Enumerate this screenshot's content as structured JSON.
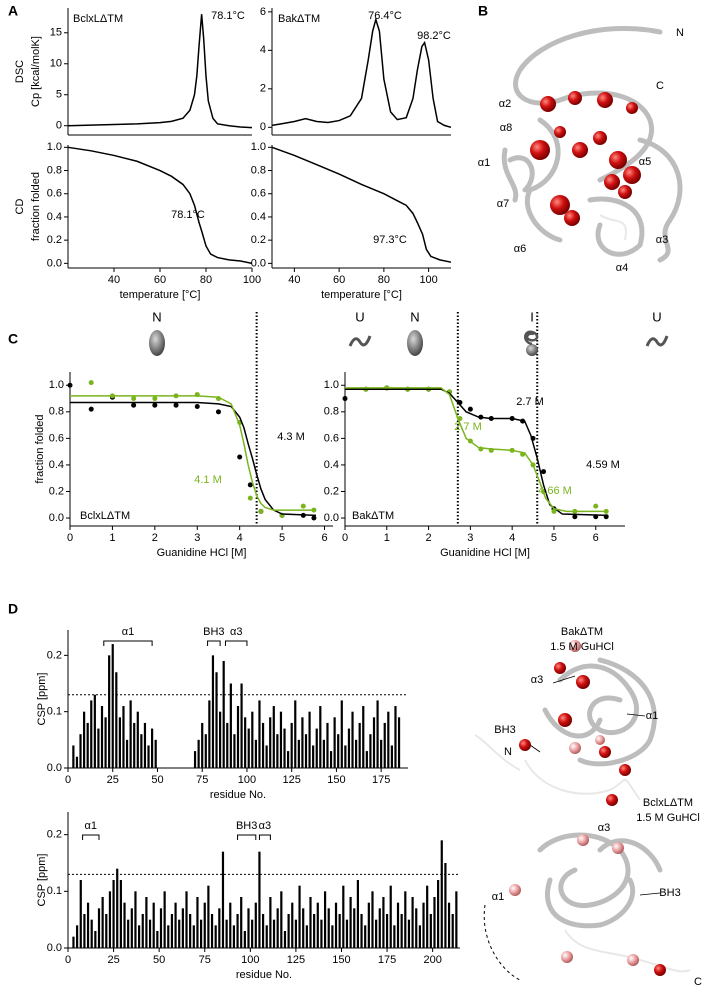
{
  "panel_labels": [
    "A",
    "B",
    "C",
    "D"
  ],
  "structures": {
    "B": {
      "labels": [
        "N",
        "C",
        "α2",
        "α8",
        "α1",
        "α5",
        "α7",
        "α6",
        "α3",
        "α4"
      ]
    },
    "D_bak": {
      "title": "BakΔTM",
      "subtitle": "1.5 M GuHCl",
      "labels": [
        "α3",
        "BH3",
        "N",
        "α1"
      ]
    },
    "D_bclxl": {
      "title": "BclxLΔTM",
      "subtitle": "1.5 M GuHCl",
      "labels": [
        "α3",
        "BH3",
        "α1",
        "C"
      ]
    }
  },
  "chart_data": [
    {
      "type": "line",
      "title": "BclxLΔTM",
      "ylabel": [
        "DSC",
        "Cp [kcal/molK]"
      ],
      "xlim": [
        20,
        100
      ],
      "ylim": [
        -1.5,
        19
      ],
      "yticks": [
        0,
        5,
        10,
        15
      ],
      "series": [
        {
          "color": "#000000",
          "x": [
            20,
            30,
            40,
            50,
            60,
            65,
            70,
            73,
            75,
            76,
            77,
            78.1,
            79,
            80,
            81,
            83,
            85,
            90,
            95,
            100
          ],
          "values": [
            0,
            0.1,
            0.2,
            0.3,
            0.5,
            0.7,
            1.2,
            2.5,
            5,
            8,
            13,
            18,
            14,
            8,
            4,
            1.2,
            0.3,
            0,
            -0.2,
            -0.3
          ]
        }
      ],
      "annotations": [
        {
          "text": "78.1°C"
        }
      ]
    },
    {
      "type": "line",
      "title": "BakΔTM",
      "xlim": [
        30,
        110
      ],
      "ylim": [
        -0.4,
        6.2
      ],
      "yticks": [
        0,
        2,
        4,
        6
      ],
      "series": [
        {
          "color": "#000000",
          "x": [
            30,
            35,
            40,
            45,
            50,
            55,
            60,
            65,
            70,
            73,
            75,
            76.4,
            78,
            80,
            83,
            86,
            90,
            93,
            95,
            97,
            98.2,
            100,
            102,
            104,
            107,
            110
          ],
          "values": [
            0.1,
            0.2,
            0.3,
            0.45,
            0.3,
            0.25,
            0.35,
            0.6,
            1.5,
            3.5,
            5,
            5.6,
            5,
            2.5,
            0.8,
            0.4,
            0.5,
            1.5,
            3,
            4.2,
            4.4,
            3.5,
            1.5,
            0.3,
            0.1,
            0
          ]
        }
      ],
      "annotations": [
        {
          "text": "76.4°C"
        },
        {
          "text": "98.2°C"
        }
      ]
    },
    {
      "type": "line",
      "ylabel": [
        "CD",
        "fraction folded"
      ],
      "xlabel": "temperature [°C]",
      "xlim": [
        20,
        100
      ],
      "ylim": [
        -0.04,
        1.02
      ],
      "xticks": [
        40,
        60,
        80,
        100
      ],
      "yticks": [
        {
          "value": 0,
          "label": "0.0"
        },
        0.2,
        0.4,
        0.6,
        0.8,
        {
          "value": 1,
          "label": "1.0"
        }
      ],
      "series": [
        {
          "color": "#000000",
          "x": [
            20,
            30,
            40,
            50,
            60,
            65,
            70,
            73,
            75,
            77,
            78.1,
            80,
            82,
            85,
            90,
            95,
            100
          ],
          "values": [
            1,
            0.97,
            0.93,
            0.88,
            0.8,
            0.75,
            0.68,
            0.6,
            0.5,
            0.35,
            0.28,
            0.15,
            0.08,
            0.05,
            0.03,
            0.02,
            0
          ]
        }
      ],
      "annotations": [
        {
          "text": "78.1°C"
        }
      ]
    },
    {
      "type": "line",
      "xlabel": "temperature [°C]",
      "xlim": [
        30,
        110
      ],
      "ylim": [
        -0.04,
        1.02
      ],
      "xticks": [
        40,
        60,
        80,
        100
      ],
      "yticks": [
        {
          "value": 0,
          "label": "0.0"
        },
        0.2,
        0.4,
        0.6,
        0.8,
        {
          "value": 1,
          "label": "1.0"
        }
      ],
      "series": [
        {
          "color": "#000000",
          "x": [
            30,
            40,
            50,
            60,
            70,
            80,
            85,
            90,
            93,
            95,
            97.3,
            99,
            101,
            105,
            110
          ],
          "values": [
            1,
            0.93,
            0.85,
            0.77,
            0.68,
            0.6,
            0.55,
            0.5,
            0.43,
            0.35,
            0.25,
            0.12,
            0.06,
            0.03,
            0.01
          ]
        }
      ],
      "annotations": [
        {
          "text": "97.3°C"
        }
      ]
    },
    {
      "type": "scatter",
      "title": "BclxLΔTM",
      "ylabel": [
        "fraction folded"
      ],
      "xlabel": "Guanidine HCl [M]",
      "xlim": [
        0,
        6.2
      ],
      "ylim": [
        -0.06,
        1.1
      ],
      "xticks": [
        0,
        1,
        2,
        3,
        4,
        5,
        6
      ],
      "yticks": [
        {
          "value": 0,
          "label": "0.0"
        },
        0.2,
        0.4,
        0.6,
        0.8,
        {
          "value": 1,
          "label": "1.0"
        }
      ],
      "states": [
        "N",
        "U"
      ],
      "vlines": [
        4.4
      ],
      "series": [
        {
          "color": "#000000",
          "mode": "markers",
          "x": [
            0,
            0.5,
            1,
            1.5,
            2,
            2.5,
            3,
            3.5,
            4,
            4.25,
            4.5,
            5,
            5.5,
            5.75
          ],
          "values": [
            1,
            0.82,
            0.91,
            0.85,
            0.85,
            0.85,
            0.84,
            0.8,
            0.46,
            0.25,
            0.05,
            0.02,
            0.02,
            0
          ]
        },
        {
          "color": "#7ab51d",
          "mode": "markers",
          "x": [
            0.5,
            1,
            1.5,
            2,
            2.5,
            3,
            3.5,
            4,
            4.25,
            4.5,
            5,
            5.5,
            5.75
          ],
          "values": [
            1.02,
            0.92,
            0.9,
            0.9,
            0.92,
            0.93,
            0.9,
            0.72,
            0.15,
            0.05,
            0.02,
            0.09,
            0.06
          ]
        },
        {
          "color": "#000000",
          "mode": "line",
          "x": [
            0,
            3,
            3.5,
            3.8,
            4,
            4.1,
            4.2,
            4.3,
            4.4,
            4.5,
            4.6,
            4.8,
            5,
            5.8
          ],
          "values": [
            0.87,
            0.87,
            0.86,
            0.84,
            0.76,
            0.68,
            0.56,
            0.45,
            0.33,
            0.22,
            0.14,
            0.06,
            0.03,
            0.02
          ]
        },
        {
          "color": "#7ab51d",
          "mode": "line",
          "x": [
            0,
            3,
            3.5,
            3.8,
            4,
            4.1,
            4.2,
            4.3,
            4.4,
            4.5,
            4.6,
            4.8,
            5,
            5.8
          ],
          "values": [
            0.92,
            0.92,
            0.91,
            0.86,
            0.7,
            0.56,
            0.4,
            0.27,
            0.17,
            0.11,
            0.08,
            0.06,
            0.06,
            0.06
          ]
        }
      ],
      "annotations": [
        {
          "text": "4.3 M",
          "color": "#000000"
        },
        {
          "text": "4.1 M",
          "color": "#7ab51d"
        }
      ]
    },
    {
      "type": "scatter",
      "title": "BakΔTM",
      "xlabel": "Guanidine HCl [M]",
      "xlim": [
        0,
        6.7
      ],
      "ylim": [
        -0.06,
        1.1
      ],
      "xticks": [
        0,
        1,
        2,
        3,
        4,
        5,
        6
      ],
      "yticks": [
        {
          "value": 0,
          "label": "0.0"
        },
        0.2,
        0.4,
        0.6,
        0.8,
        {
          "value": 1,
          "label": "1.0"
        }
      ],
      "states": [
        "N",
        "I",
        "U"
      ],
      "vlines": [
        2.7,
        4.6
      ],
      "series": [
        {
          "color": "#000000",
          "mode": "markers",
          "x": [
            0,
            0.5,
            1,
            1.5,
            2,
            2.5,
            2.75,
            3,
            3.25,
            3.5,
            4,
            4.25,
            4.5,
            4.75,
            5,
            5.5,
            6,
            6.25
          ],
          "values": [
            0.9,
            0.97,
            0.98,
            0.97,
            0.97,
            0.95,
            0.87,
            0.82,
            0.76,
            0.75,
            0.75,
            0.73,
            0.6,
            0.35,
            0.07,
            0.01,
            0.01,
            0.01
          ]
        },
        {
          "color": "#7ab51d",
          "mode": "markers",
          "x": [
            0.5,
            1,
            1.5,
            2,
            2.5,
            2.75,
            3,
            3.25,
            3.5,
            4,
            4.25,
            4.5,
            4.75,
            5,
            5.5,
            6,
            6.25
          ],
          "values": [
            0.97,
            0.98,
            0.97,
            0.97,
            0.95,
            0.75,
            0.58,
            0.52,
            0.51,
            0.51,
            0.48,
            0.4,
            0.2,
            0.05,
            0.05,
            0.09,
            0.05
          ]
        },
        {
          "color": "#000000",
          "mode": "line",
          "x": [
            0,
            2.3,
            2.5,
            2.7,
            2.9,
            3.2,
            3.5,
            4,
            4.3,
            4.45,
            4.6,
            4.75,
            4.9,
            5.2,
            6.3
          ],
          "values": [
            0.97,
            0.97,
            0.94,
            0.87,
            0.8,
            0.76,
            0.75,
            0.75,
            0.73,
            0.62,
            0.45,
            0.25,
            0.1,
            0.03,
            0.02
          ]
        },
        {
          "color": "#7ab51d",
          "mode": "line",
          "x": [
            0,
            2.3,
            2.5,
            2.7,
            2.9,
            3.2,
            3.5,
            4,
            4.3,
            4.5,
            4.66,
            4.8,
            5,
            5.3,
            6.3
          ],
          "values": [
            0.98,
            0.98,
            0.93,
            0.75,
            0.6,
            0.53,
            0.52,
            0.51,
            0.49,
            0.4,
            0.27,
            0.15,
            0.07,
            0.05,
            0.05
          ]
        }
      ],
      "annotations": [
        {
          "text": "2.7 M",
          "color": "#000000"
        },
        {
          "text": "2.7 M",
          "color": "#7ab51d"
        },
        {
          "text": "4.66 M",
          "color": "#7ab51d"
        },
        {
          "text": "4.59 M",
          "color": "#000000"
        }
      ]
    },
    {
      "type": "bar",
      "ylabel": [
        "CSP [ppm]"
      ],
      "xlabel": "residue No.",
      "xlim": [
        0,
        190
      ],
      "ylim": [
        0,
        0.245
      ],
      "xticks": [
        0,
        25,
        50,
        75,
        100,
        125,
        150,
        175
      ],
      "yticks": [
        {
          "value": 0,
          "label": "0.0"
        },
        0.1,
        0.2
      ],
      "threshold": 0.13,
      "color": "#000000",
      "brackets": [
        {
          "text": "α1",
          "x": [
            20,
            47
          ]
        },
        {
          "text": "BH3",
          "x": [
            78,
            85
          ]
        },
        {
          "text": "α3",
          "x": [
            88,
            100
          ]
        }
      ],
      "x": [
        3,
        5,
        7,
        9,
        11,
        13,
        15,
        17,
        19,
        21,
        23,
        25,
        27,
        29,
        31,
        33,
        35,
        37,
        39,
        41,
        43,
        45,
        47,
        49,
        71,
        73,
        75,
        77,
        79,
        81,
        83,
        85,
        87,
        89,
        91,
        93,
        95,
        97,
        99,
        101,
        103,
        105,
        107,
        109,
        111,
        113,
        115,
        117,
        119,
        121,
        123,
        125,
        127,
        129,
        131,
        133,
        135,
        137,
        139,
        141,
        143,
        145,
        147,
        149,
        151,
        153,
        155,
        157,
        159,
        161,
        163,
        165,
        167,
        169,
        171,
        173,
        175,
        177,
        179,
        181,
        183,
        185
      ],
      "values": [
        0.04,
        0.02,
        0.06,
        0.1,
        0.08,
        0.12,
        0.13,
        0.07,
        0.11,
        0.09,
        0.2,
        0.22,
        0.17,
        0.09,
        0.11,
        0.05,
        0.12,
        0.08,
        0.1,
        0.06,
        0.08,
        0.04,
        0.07,
        0.05,
        0.03,
        0.05,
        0.08,
        0.06,
        0.12,
        0.2,
        0.17,
        0.1,
        0.19,
        0.08,
        0.15,
        0.06,
        0.11,
        0.15,
        0.09,
        0.07,
        0.1,
        0.05,
        0.12,
        0.08,
        0.04,
        0.09,
        0.11,
        0.06,
        0.1,
        0.07,
        0.03,
        0.08,
        0.12,
        0.05,
        0.09,
        0.06,
        0.1,
        0.04,
        0.07,
        0.11,
        0.05,
        0.08,
        0.03,
        0.09,
        0.06,
        0.12,
        0.04,
        0.07,
        0.1,
        0.05,
        0.08,
        0.11,
        0.03,
        0.06,
        0.09,
        0.12,
        0.05,
        0.08,
        0.1,
        0.04,
        0.11,
        0.09
      ]
    },
    {
      "type": "bar",
      "ylabel": [
        "CSP [ppm]"
      ],
      "xlabel": "residue No.",
      "xlim": [
        0,
        215
      ],
      "ylim": [
        0,
        0.24
      ],
      "xticks": [
        0,
        25,
        50,
        75,
        100,
        125,
        150,
        175,
        200
      ],
      "yticks": [
        {
          "value": 0,
          "label": "0.0"
        },
        0.1,
        0.2
      ],
      "threshold": 0.13,
      "color": "#000000",
      "brackets": [
        {
          "text": "α1",
          "x": [
            8,
            17
          ]
        },
        {
          "text": "BH3",
          "x": [
            93,
            103
          ]
        },
        {
          "text": "α3",
          "x": [
            105,
            111
          ]
        }
      ],
      "x": [
        3,
        5,
        7,
        9,
        11,
        13,
        15,
        17,
        19,
        21,
        23,
        25,
        27,
        29,
        31,
        33,
        35,
        37,
        39,
        41,
        43,
        45,
        47,
        49,
        51,
        53,
        55,
        57,
        59,
        61,
        63,
        65,
        67,
        69,
        71,
        73,
        75,
        77,
        79,
        81,
        83,
        85,
        87,
        89,
        91,
        93,
        95,
        97,
        99,
        101,
        103,
        105,
        107,
        109,
        111,
        113,
        115,
        117,
        119,
        121,
        123,
        125,
        127,
        129,
        131,
        133,
        135,
        137,
        139,
        141,
        143,
        145,
        147,
        149,
        151,
        153,
        155,
        157,
        159,
        161,
        163,
        165,
        167,
        169,
        171,
        173,
        175,
        177,
        179,
        181,
        183,
        185,
        187,
        189,
        191,
        193,
        195,
        197,
        199,
        201,
        203,
        205,
        207,
        209,
        211,
        213
      ],
      "values": [
        0.02,
        0.04,
        0.12,
        0.06,
        0.08,
        0.05,
        0.03,
        0.07,
        0.09,
        0.06,
        0.1,
        0.12,
        0.14,
        0.12,
        0.08,
        0.05,
        0.07,
        0.1,
        0.04,
        0.06,
        0.09,
        0.05,
        0.08,
        0.03,
        0.07,
        0.1,
        0.04,
        0.06,
        0.08,
        0.05,
        0.07,
        0.1,
        0.06,
        0.04,
        0.09,
        0.05,
        0.08,
        0.11,
        0.06,
        0.04,
        0.07,
        0.17,
        0.05,
        0.08,
        0.04,
        0.06,
        0.09,
        0.03,
        0.07,
        0.05,
        0.08,
        0.17,
        0.06,
        0.04,
        0.09,
        0.05,
        0.07,
        0.1,
        0.03,
        0.06,
        0.08,
        0.05,
        0.11,
        0.07,
        0.04,
        0.09,
        0.06,
        0.08,
        0.05,
        0.1,
        0.07,
        0.04,
        0.08,
        0.06,
        0.11,
        0.05,
        0.09,
        0.07,
        0.12,
        0.06,
        0.04,
        0.08,
        0.1,
        0.05,
        0.07,
        0.09,
        0.06,
        0.11,
        0.04,
        0.08,
        0.06,
        0.1,
        0.05,
        0.09,
        0.07,
        0.04,
        0.08,
        0.11,
        0.06,
        0.09,
        0.12,
        0.19,
        0.15,
        0.08,
        0.06,
        0.1
      ]
    }
  ]
}
